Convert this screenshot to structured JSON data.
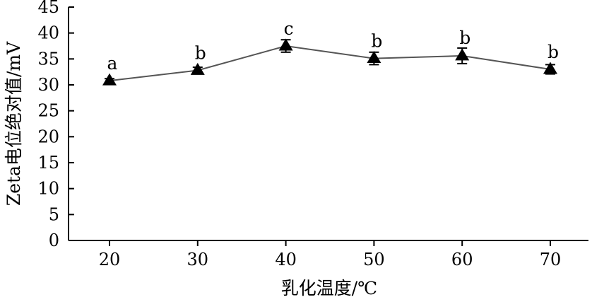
{
  "chart_data": {
    "type": "line",
    "xlabel": "乳化温度/℃",
    "ylabel": "Zeta电位绝对值/mV",
    "x": [
      20,
      30,
      40,
      50,
      60,
      70
    ],
    "xticks": [
      "20",
      "30",
      "40",
      "50",
      "60",
      "70"
    ],
    "yticks": [
      "0",
      "5",
      "10",
      "15",
      "20",
      "25",
      "30",
      "35",
      "40",
      "45"
    ],
    "ylim": [
      0,
      45
    ],
    "grid": false,
    "series": [
      {
        "values": [
          30.8,
          32.8,
          37.5,
          35.1,
          35.6,
          33.0
        ],
        "errors": [
          0.4,
          0.6,
          1.2,
          1.2,
          1.5,
          0.9
        ],
        "labels": [
          "a",
          "b",
          "c",
          "b",
          "b",
          "b"
        ],
        "marker": "triangle",
        "color": "#000000",
        "line_color": "#555555"
      }
    ]
  }
}
